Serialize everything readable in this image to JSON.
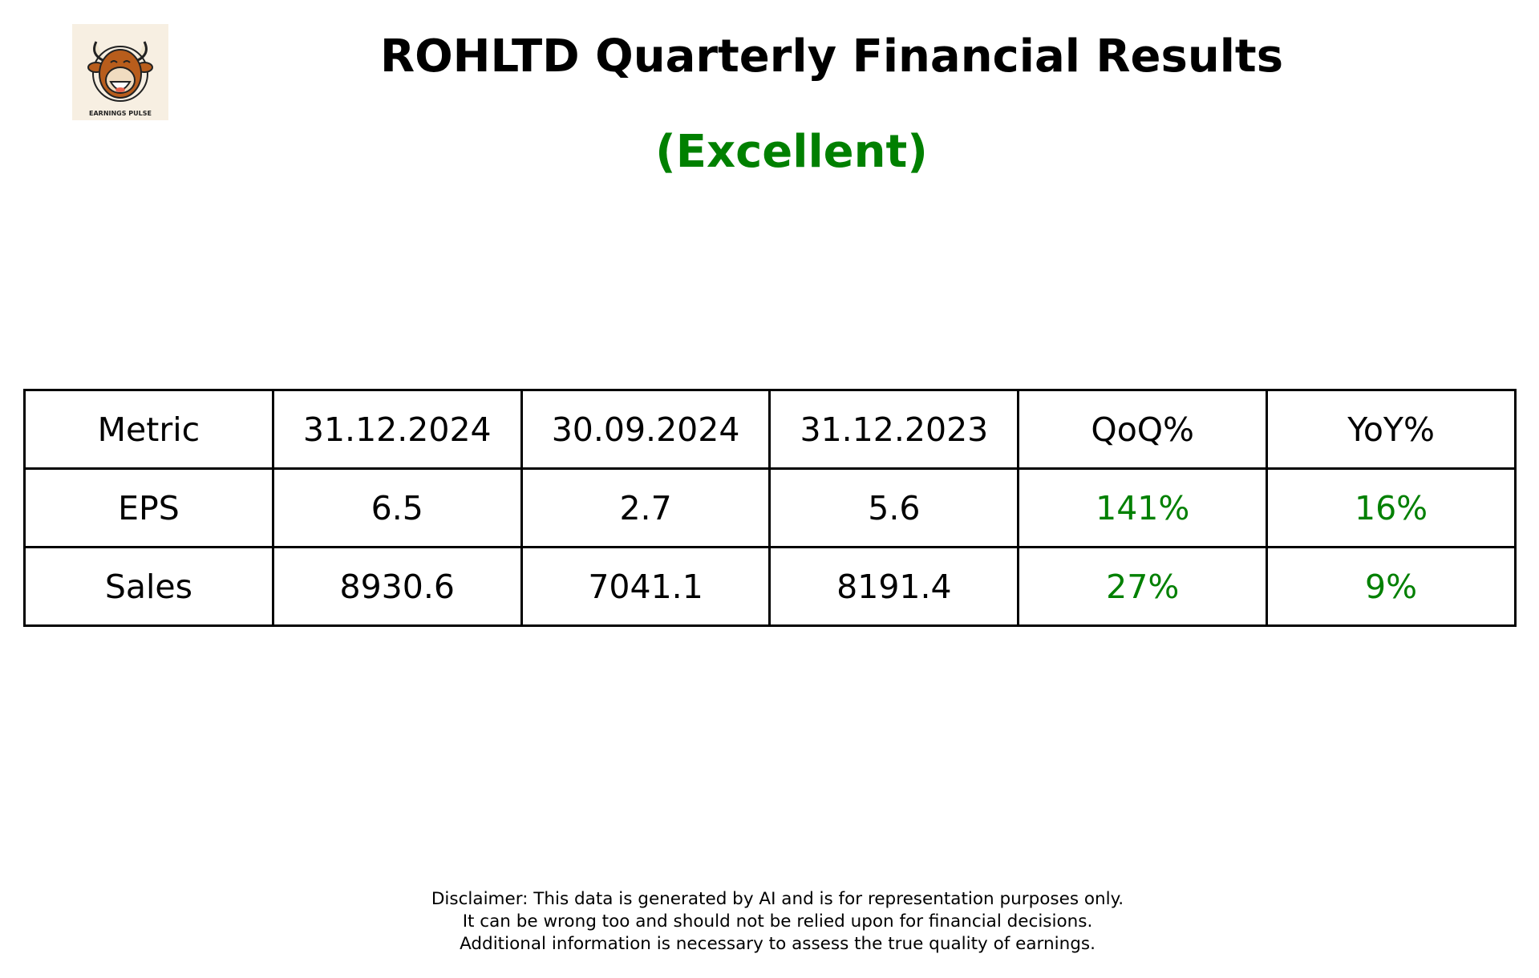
{
  "logo": {
    "text": "EARNINGS PULSE",
    "icon": "bull-icon"
  },
  "title": "ROHLTD Quarterly Financial Results",
  "rating": "(Excellent)",
  "colors": {
    "positive": "#008000",
    "text": "#000000"
  },
  "table": {
    "headers": [
      "Metric",
      "31.12.2024",
      "30.09.2024",
      "31.12.2023",
      "QoQ%",
      "YoY%"
    ],
    "rows": [
      [
        "EPS",
        "6.5",
        "2.7",
        "5.6",
        "141%",
        "16%"
      ],
      [
        "Sales",
        "8930.6",
        "7041.1",
        "8191.4",
        "27%",
        "9%"
      ]
    ]
  },
  "disclaimer": [
    "Disclaimer: This data is generated by AI and is for representation purposes only.",
    "It can be wrong too and should not be relied upon for financial decisions.",
    "Additional information is necessary to assess the true quality of earnings."
  ]
}
